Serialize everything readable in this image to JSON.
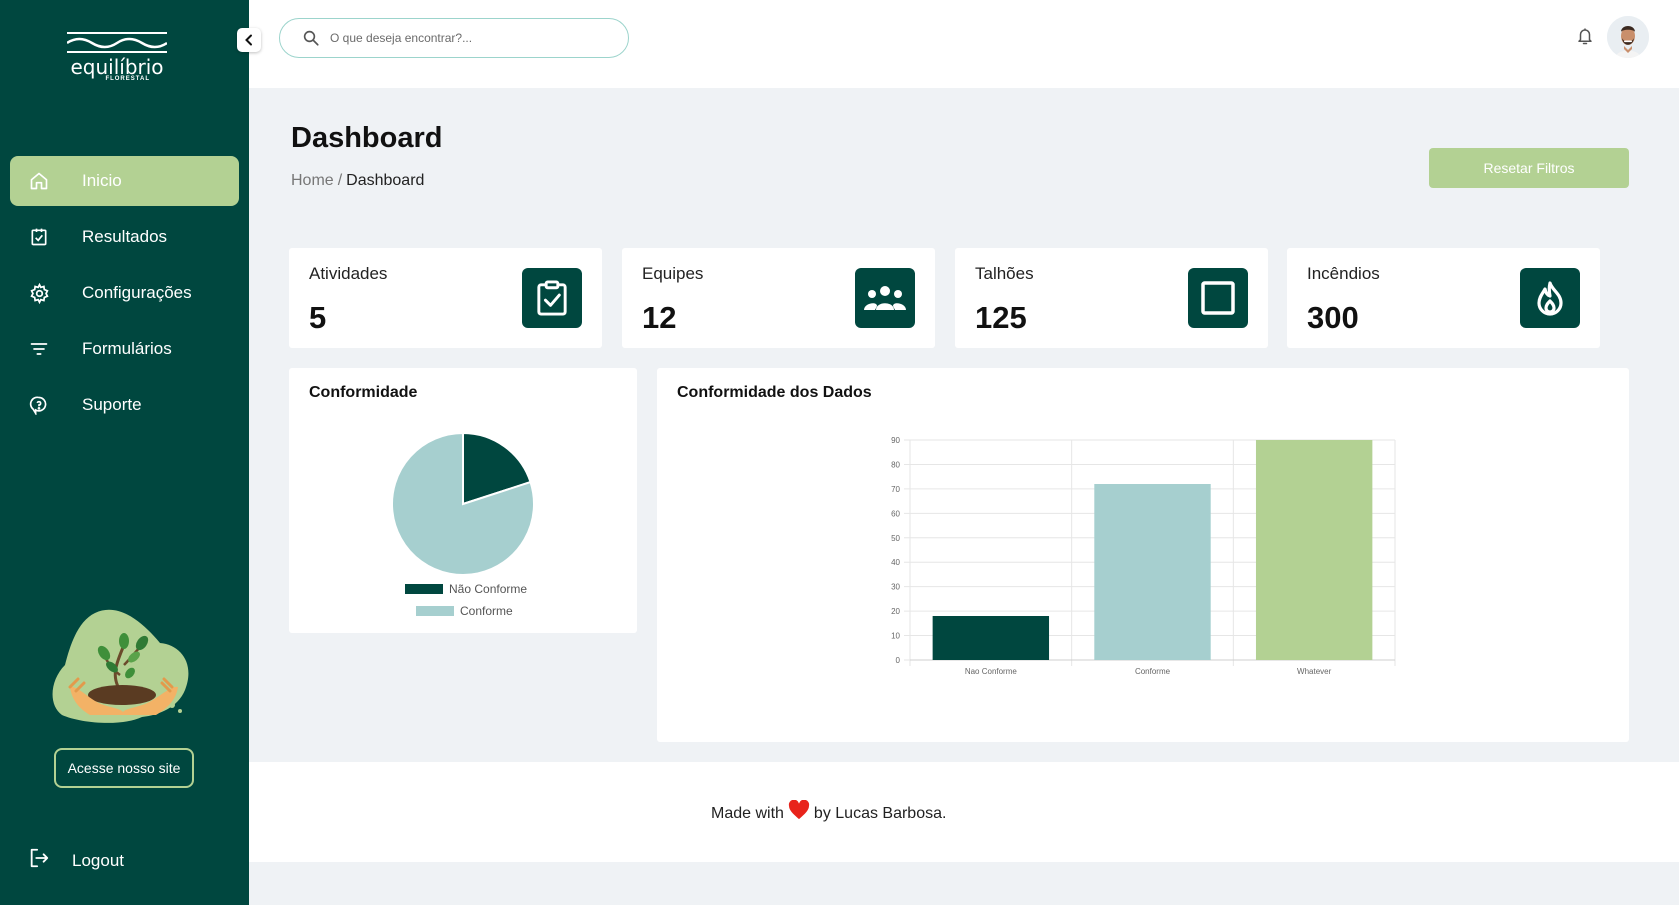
{
  "brand": {
    "name": "equilíbrio",
    "sub": "FLORESTAL"
  },
  "sidebar": {
    "items": [
      {
        "label": "Inicio",
        "icon": "home-icon",
        "active": true
      },
      {
        "label": "Resultados",
        "icon": "clipboard-check-icon",
        "active": false
      },
      {
        "label": "Configurações",
        "icon": "gear-icon",
        "active": false
      },
      {
        "label": "Formulários",
        "icon": "filter-lines-icon",
        "active": false
      },
      {
        "label": "Suporte",
        "icon": "help-bubble-icon",
        "active": false
      }
    ],
    "site_button": "Acesse nosso site",
    "logout": "Logout"
  },
  "header": {
    "search_placeholder": "O que deseja encontrar?..."
  },
  "page": {
    "title": "Dashboard",
    "breadcrumb": {
      "home": "Home",
      "separator": "/",
      "current": "Dashboard"
    },
    "reset_button": "Resetar Filtros"
  },
  "stats": [
    {
      "label": "Atividades",
      "value": "5",
      "icon": "clipboard-check-icon"
    },
    {
      "label": "Equipes",
      "value": "12",
      "icon": "team-icon"
    },
    {
      "label": "Talhões",
      "value": "125",
      "icon": "square-icon"
    },
    {
      "label": "Incêndios",
      "value": "300",
      "icon": "fire-icon"
    }
  ],
  "chart_data": [
    {
      "type": "pie",
      "title": "Conformidade",
      "labels": [
        "Não Conforme",
        "Conforme"
      ],
      "values": [
        20,
        80
      ],
      "colors": [
        "#00473f",
        "#a6cfcf"
      ],
      "legend": "bottom"
    },
    {
      "type": "bar",
      "title": "Conformidade dos Dados",
      "categories": [
        "Nao Conforme",
        "Conforme",
        "Whatever"
      ],
      "values": [
        18,
        72,
        90
      ],
      "colors": [
        "#00473f",
        "#a6cfcf",
        "#b3d193"
      ],
      "ylim": [
        0,
        90
      ],
      "yticks": [
        0,
        10,
        20,
        30,
        40,
        50,
        60,
        70,
        80,
        90
      ],
      "grid": true
    }
  ],
  "footer": {
    "prefix": "Made with",
    "suffix": "by Lucas Barbosa."
  },
  "colors": {
    "primary": "#00473f",
    "accent": "#b3d193",
    "light_teal": "#a6cfcf",
    "heart": "#e8231b"
  }
}
